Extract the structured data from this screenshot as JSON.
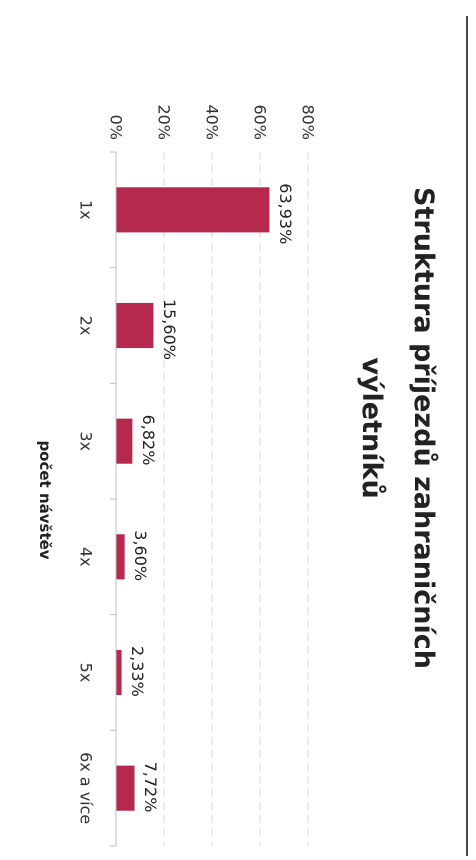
{
  "chart_data": {
    "type": "bar",
    "orientation": "rotated-90-clockwise",
    "title": "Struktura příjezdů zahraničních výletníků",
    "title_lines": [
      "Struktura příjezdů zahraničních",
      "výletníků"
    ],
    "xlabel": "počet návštěv",
    "ylabel": "",
    "categories": [
      "1x",
      "2x",
      "3x",
      "4x",
      "5x",
      "6x a více"
    ],
    "values": [
      63.93,
      15.6,
      6.82,
      3.6,
      2.33,
      7.72
    ],
    "value_labels": [
      "63,93%",
      "15,60%",
      "6,82%",
      "3,60%",
      "2,33%",
      "7,72%"
    ],
    "ylim": [
      0,
      80
    ],
    "y_ticks": [
      0,
      20,
      40,
      60,
      80
    ],
    "y_tick_labels": [
      "0%",
      "20%",
      "40%",
      "60%",
      "80%"
    ],
    "grid": true,
    "bar_color": "#b5294e"
  }
}
